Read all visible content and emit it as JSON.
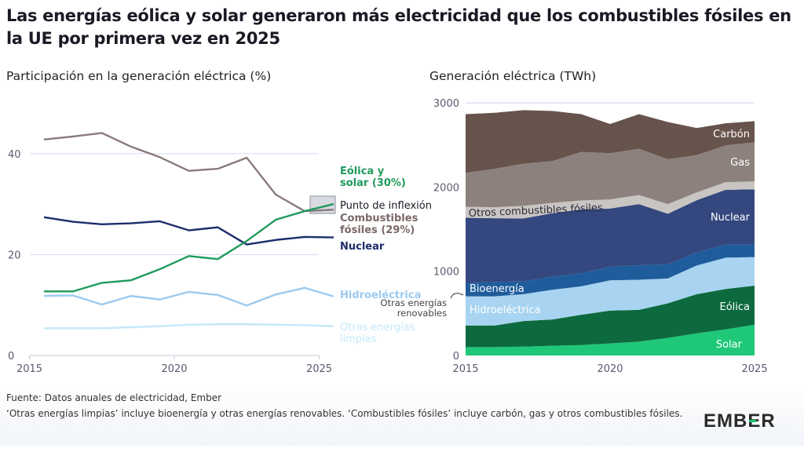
{
  "title": "Las energías eólica y solar generaron más electricidad que los combustibles fósiles en la UE por primera vez en 2025",
  "footer": {
    "source": "Fuente: Datos anuales de electricidad, Ember",
    "note": "‘Otras energías limpias’ incluye bioenergía y otras energías renovables. ‘Combustibles fósiles’ incluye carbón, gas y otros combustibles fósiles."
  },
  "logo": "EMBER",
  "chart_data": [
    {
      "type": "line",
      "title": "Participación en la generación eléctrica (%)",
      "x": [
        2015,
        2016,
        2017,
        2018,
        2019,
        2020,
        2021,
        2022,
        2023,
        2024,
        2025
      ],
      "xticks": [
        "2015",
        "2020",
        "2025"
      ],
      "yticks": [
        "0",
        "20",
        "40"
      ],
      "ylim": [
        0,
        45
      ],
      "grid": true,
      "series": [
        {
          "name": "Combustibles fósiles (29%)",
          "color": "#8a7a7a",
          "values": [
            42.8,
            43.4,
            44.1,
            41.4,
            39.3,
            36.6,
            37.0,
            39.2,
            31.9,
            28.6,
            28.9
          ]
        },
        {
          "name": "Eólica y solar (30%)",
          "color": "#1f9a5c",
          "values": [
            12.7,
            12.7,
            14.4,
            14.9,
            17.1,
            19.7,
            19.1,
            22.7,
            26.9,
            28.6,
            30.0
          ]
        },
        {
          "name": "Nuclear",
          "color": "#1c2d6b",
          "values": [
            27.4,
            26.5,
            26.0,
            26.2,
            26.6,
            24.8,
            25.4,
            22.0,
            22.9,
            23.5,
            23.4
          ]
        },
        {
          "name": "Hidroeléctrica",
          "color": "#9ccaf0",
          "values": [
            11.8,
            11.9,
            10.1,
            11.8,
            11.1,
            12.6,
            12.0,
            9.9,
            12.1,
            13.4,
            11.7
          ]
        },
        {
          "name": "Otras energías limpias",
          "color": "#c3e8f8",
          "values": [
            5.4,
            5.4,
            5.4,
            5.6,
            5.8,
            6.1,
            6.2,
            6.2,
            6.1,
            6.0,
            5.8
          ]
        }
      ],
      "annotation": "Punto de inflexión"
    },
    {
      "type": "area",
      "stacked": true,
      "title": "Generación eléctrica (TWh)",
      "x": [
        2015,
        2016,
        2017,
        2018,
        2019,
        2020,
        2021,
        2022,
        2023,
        2024,
        2025
      ],
      "xticks": [
        "2015",
        "2020",
        "2025"
      ],
      "yticks": [
        "0",
        "1000",
        "2000",
        "3000"
      ],
      "ylim": [
        0,
        3000
      ],
      "series": [
        {
          "name": "Solar",
          "color": "#1ec878",
          "values": [
            99,
            99,
            105,
            115,
            124,
            143,
            164,
            208,
            263,
            310,
            366
          ]
        },
        {
          "name": "Eólica",
          "color": "#0d6a3e",
          "values": [
            257,
            257,
            304,
            313,
            359,
            390,
            378,
            412,
            465,
            480,
            464
          ]
        },
        {
          "name": "Hidroeléctrica",
          "color": "#a8d4f1",
          "values": [
            347,
            347,
            319,
            353,
            338,
            359,
            357,
            294,
            341,
            372,
            338
          ]
        },
        {
          "name": "Bioenergía",
          "color": "#1f5c9c",
          "values": [
            158,
            171,
            152,
            155,
            155,
            162,
            173,
            168,
            155,
            155,
            149
          ]
        },
        {
          "name": "Nuclear",
          "color": "#34487f",
          "values": [
            775,
            756,
            747,
            753,
            759,
            691,
            725,
            601,
            620,
            651,
            657
          ]
        },
        {
          "name": "Otros combustibles fósiles",
          "color": "#c9c5c2",
          "values": [
            130,
            130,
            149,
            124,
            106,
            108,
            109,
            114,
            93,
            90,
            93
          ]
        },
        {
          "name": "Gas",
          "color": "#8d817d",
          "values": [
            403,
            456,
            502,
            496,
            576,
            549,
            548,
            533,
            443,
            437,
            465
          ]
        },
        {
          "name": "Carbón",
          "color": "#66534c",
          "values": [
            697,
            666,
            635,
            595,
            449,
            347,
            412,
            443,
            322,
            263,
            251
          ]
        }
      ],
      "annotation": "Otras energías renovables"
    }
  ]
}
